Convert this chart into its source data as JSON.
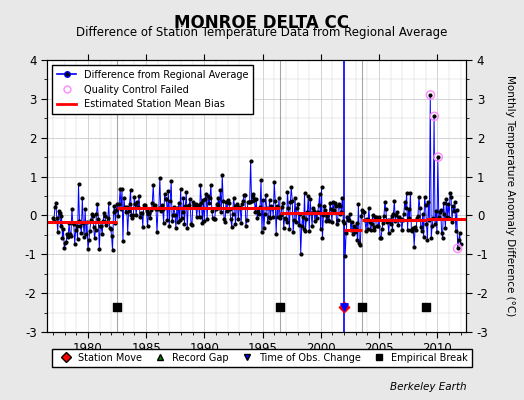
{
  "title": "MONROE DELTA CC",
  "subtitle": "Difference of Station Temperature Data from Regional Average",
  "ylabel": "Monthly Temperature Anomaly Difference (°C)",
  "xlim": [
    1976.5,
    2012.5
  ],
  "ylim": [
    -3.0,
    4.0
  ],
  "yticks": [
    -3,
    -2,
    -1,
    0,
    1,
    2,
    3,
    4
  ],
  "xticks": [
    1980,
    1985,
    1990,
    1995,
    2000,
    2005,
    2010
  ],
  "background_color": "#e8e8e8",
  "plot_bg_color": "#ffffff",
  "grid_color": "#cccccc",
  "annotation_text": "Berkeley Earth",
  "segments": [
    {
      "x_start": 1976.5,
      "x_end": 1982.5,
      "bias": -0.18
    },
    {
      "x_start": 1982.5,
      "x_end": 1996.5,
      "bias": 0.18
    },
    {
      "x_start": 1996.5,
      "x_end": 2002.0,
      "bias": 0.05
    },
    {
      "x_start": 2002.0,
      "x_end": 2003.5,
      "bias": -0.38
    },
    {
      "x_start": 2003.5,
      "x_end": 2009.0,
      "bias": -0.12
    },
    {
      "x_start": 2009.0,
      "x_end": 2012.5,
      "bias": -0.08
    }
  ],
  "empirical_breaks": [
    1982.5,
    1996.5,
    2003.5,
    2009.0
  ],
  "station_moves": [
    2002.0
  ],
  "obs_changes": [
    2002.0
  ],
  "record_gaps": [],
  "vertical_lines_gray": [
    1982.5,
    1996.5,
    2003.5
  ],
  "vertical_lines_blue": [
    2002.0
  ],
  "qc_failed_points": [
    [
      2009.42,
      3.1
    ],
    [
      2009.75,
      2.55
    ],
    [
      2010.08,
      1.5
    ],
    [
      2011.75,
      -0.85
    ]
  ],
  "seed": 42,
  "n_points": 432
}
